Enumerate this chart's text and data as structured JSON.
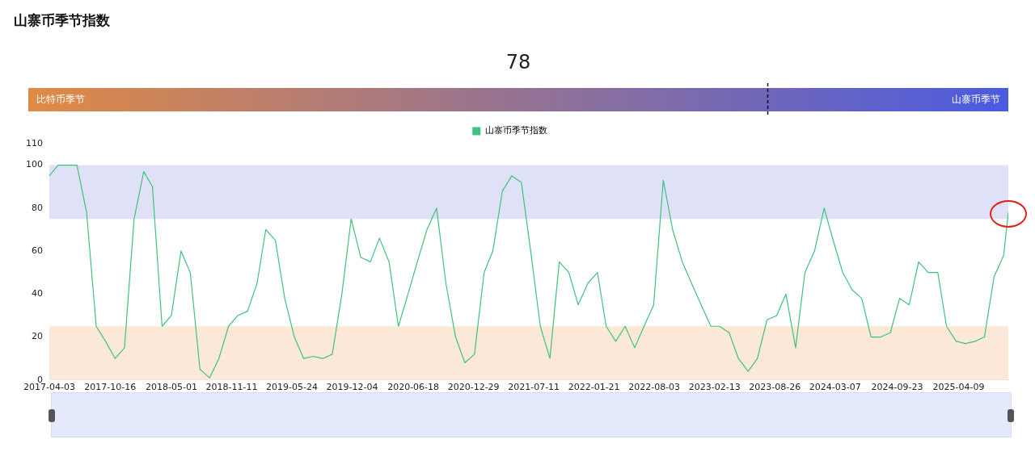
{
  "chart_data": [
    {
      "type": "other",
      "title": "山寨币季节指数",
      "values": [
        78
      ],
      "data_labels": true,
      "annotations": [
        "比特币季节",
        "山寨币季节"
      ]
    },
    {
      "type": "line",
      "legend": "top",
      "marker": "none",
      "line_style": "solid",
      "series": [
        {
          "name": "山寨币季节指数",
          "color": "#3cc47a",
          "x": [
            "2017-04-03",
            "2017-05",
            "2017-06",
            "2017-07",
            "2017-08",
            "2017-09",
            "2017-10",
            "2017-11",
            "2017-12",
            "2018-01",
            "2018-02",
            "2018-03",
            "2018-04",
            "2018-05",
            "2018-06",
            "2018-07",
            "2018-08",
            "2018-09",
            "2018-10",
            "2018-11",
            "2018-12",
            "2019-01",
            "2019-02",
            "2019-03",
            "2019-04",
            "2019-05",
            "2019-06",
            "2019-07",
            "2019-08",
            "2019-09",
            "2019-10",
            "2019-11",
            "2019-12",
            "2020-01",
            "2020-02",
            "2020-03",
            "2020-04",
            "2020-05",
            "2020-06",
            "2020-07",
            "2020-08",
            "2020-09",
            "2020-10",
            "2020-11",
            "2020-12",
            "2021-01",
            "2021-02",
            "2021-03",
            "2021-04",
            "2021-05",
            "2021-06",
            "2021-07",
            "2021-08",
            "2021-09",
            "2021-10",
            "2021-11",
            "2021-12",
            "2022-01",
            "2022-02",
            "2022-03",
            "2022-04",
            "2022-05",
            "2022-06",
            "2022-07",
            "2022-08",
            "2022-09",
            "2022-10",
            "2022-11",
            "2022-12",
            "2023-01",
            "2023-02",
            "2023-03",
            "2023-04",
            "2023-05",
            "2023-06",
            "2023-07",
            "2023-08",
            "2023-09",
            "2023-10",
            "2023-11",
            "2023-12",
            "2024-01",
            "2024-02",
            "2024-03",
            "2024-04",
            "2024-05",
            "2024-06",
            "2024-07",
            "2024-08",
            "2024-09",
            "2024-10",
            "2024-11",
            "2024-12",
            "2025-01",
            "2025-02",
            "2025-03",
            "2025-04",
            "2025-05",
            "2025-06",
            "2025-07",
            "2025-08",
            "2025-09",
            "2025-09-16"
          ],
          "values": [
            95,
            100,
            100,
            100,
            78,
            25,
            18,
            10,
            15,
            75,
            97,
            90,
            25,
            30,
            60,
            50,
            5,
            1,
            10,
            25,
            30,
            32,
            45,
            70,
            65,
            38,
            20,
            10,
            11,
            10,
            12,
            40,
            75,
            57,
            55,
            66,
            55,
            25,
            40,
            55,
            70,
            80,
            45,
            20,
            8,
            12,
            50,
            60,
            88,
            95,
            92,
            60,
            25,
            10,
            55,
            50,
            35,
            45,
            50,
            25,
            18,
            25,
            15,
            25,
            35,
            93,
            70,
            55,
            45,
            35,
            25,
            25,
            22,
            10,
            4,
            10,
            28,
            30,
            40,
            15,
            50,
            60,
            80,
            65,
            50,
            42,
            38,
            20,
            20,
            22,
            38,
            35,
            55,
            50,
            50,
            25,
            18,
            17,
            18,
            20,
            48,
            58,
            78
          ]
        }
      ],
      "ylim": [
        0,
        110
      ],
      "yticks": [
        0,
        20,
        40,
        60,
        80,
        100,
        110
      ],
      "xlim": [
        "2017-04-03",
        "2025-09-16"
      ],
      "xticks": [
        "2017-04-03",
        "2017-10-16",
        "2018-05-01",
        "2018-11-11",
        "2019-05-24",
        "2019-12-04",
        "2020-06-18",
        "2020-12-29",
        "2021-07-11",
        "2022-01-21",
        "2022-08-03",
        "2023-02-13",
        "2023-08-26",
        "2024-03-07",
        "2024-09-23",
        "2025-04-09"
      ],
      "bands": [
        {
          "axis": "y",
          "from": 75,
          "to": 100,
          "color": "#dfe1f9"
        },
        {
          "axis": "y",
          "from": 0,
          "to": 25,
          "color": "#fbe8d9"
        }
      ]
    }
  ]
}
